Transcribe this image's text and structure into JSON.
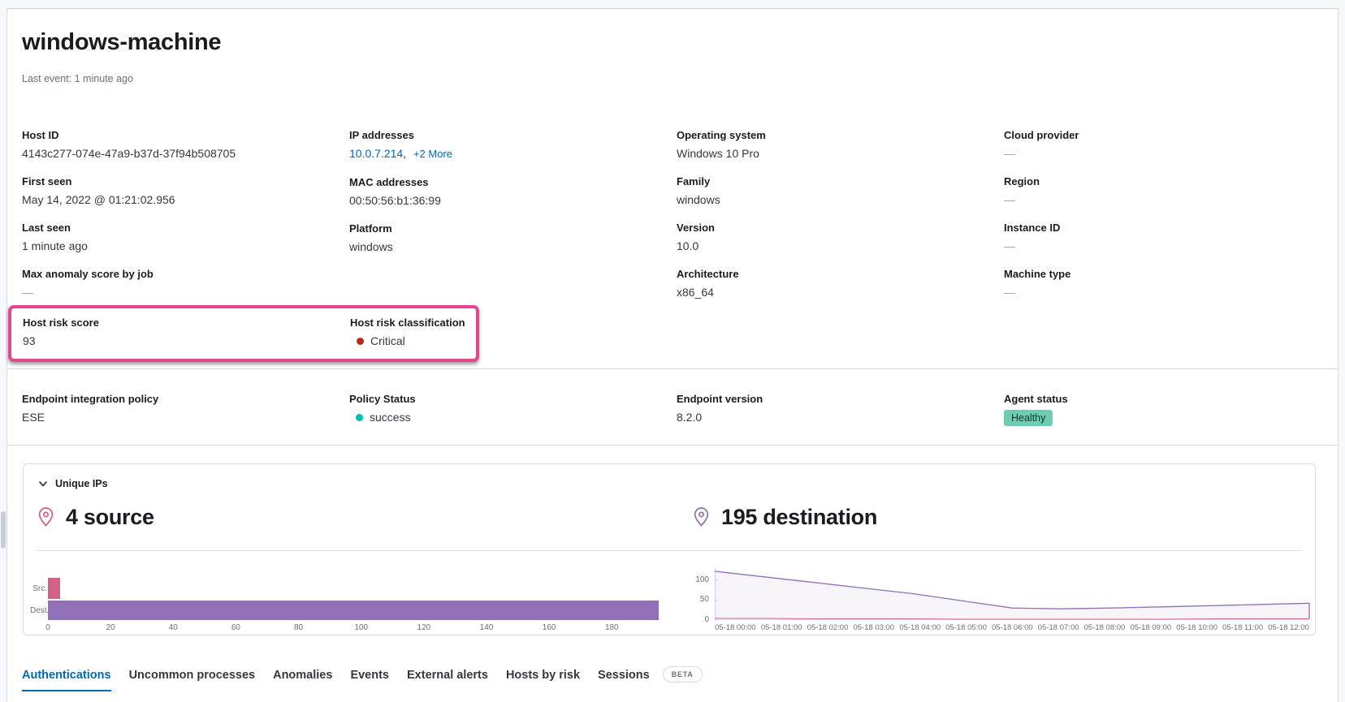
{
  "window": {
    "title": "windows-machine",
    "last_event": "Last event: 1 minute ago"
  },
  "colors": {
    "link": "#006bb4",
    "accent_highlight_box": "#e5478f",
    "critical_dot": "#bd271e",
    "success_dot": "#00bfb3",
    "healthy_badge_bg": "#6dccb1",
    "source_pink": "#d36086",
    "destination_purple": "#9170b8",
    "active_tab": "#006bb4"
  },
  "overview": {
    "columns": [
      {
        "fields": [
          {
            "label": "Host ID",
            "value": "4143c277-074e-47a9-b37d-37f94b508705"
          },
          {
            "label": "First seen",
            "value": "May 14, 2022 @ 01:21:02.956"
          },
          {
            "label": "Last seen",
            "value": "1 minute ago"
          },
          {
            "label": "Max anomaly score by job",
            "value": "—"
          }
        ]
      },
      {
        "fields": [
          {
            "label": "IP addresses",
            "value": "10.0.7.214",
            "separator": ",",
            "more_link": "+2 More"
          },
          {
            "label": "MAC addresses",
            "value": "00:50:56:b1:36:99"
          },
          {
            "label": "Platform",
            "value": "windows"
          }
        ]
      },
      {
        "fields": [
          {
            "label": "Operating system",
            "value": "Windows 10 Pro"
          },
          {
            "label": "Family",
            "value": "windows"
          },
          {
            "label": "Version",
            "value": "10.0"
          },
          {
            "label": "Architecture",
            "value": "x86_64"
          }
        ]
      },
      {
        "fields": [
          {
            "label": "Cloud provider",
            "value": "—"
          },
          {
            "label": "Region",
            "value": "—"
          },
          {
            "label": "Instance ID",
            "value": "—"
          },
          {
            "label": "Machine type",
            "value": "—"
          }
        ]
      }
    ]
  },
  "risk": {
    "score_label": "Host risk score",
    "score": "93",
    "classification_label": "Host risk classification",
    "classification": "Critical"
  },
  "endpoint": {
    "policy_label": "Endpoint integration policy",
    "policy_value": "ESE",
    "status_label": "Policy Status",
    "status_value": "success",
    "version_label": "Endpoint version",
    "version_value": "8.2.0",
    "agent_label": "Agent status",
    "agent_value": "Healthy"
  },
  "unique_ips": {
    "header": "Unique IPs",
    "source_heading": "4 source",
    "destination_heading": "195 destination"
  },
  "chart_data": [
    {
      "id": "unique-ips-bar",
      "type": "bar",
      "orientation": "horizontal",
      "categories": [
        "Src.",
        "Dest."
      ],
      "values": [
        4,
        195
      ],
      "series_colors": [
        "#d36086",
        "#9170b8"
      ],
      "xlim": [
        0,
        196
      ],
      "xticks": [
        0,
        20,
        40,
        60,
        80,
        100,
        120,
        140,
        160,
        180
      ],
      "legend": "none",
      "grid": false
    },
    {
      "id": "unique-ips-over-time",
      "type": "area",
      "x": [
        "05-18 00:00",
        "05-18 01:00",
        "05-18 02:00",
        "05-18 03:00",
        "05-18 04:00",
        "05-18 05:00",
        "05-18 06:00",
        "05-18 07:00",
        "05-18 08:00",
        "05-18 09:00",
        "05-18 10:00",
        "05-18 11:00",
        "05-18 12:00"
      ],
      "series": [
        {
          "name": "destination",
          "color": "#9170b8",
          "values": [
            122,
            108,
            94,
            80,
            66,
            48,
            30,
            28,
            30,
            33,
            36,
            39,
            42
          ],
          "end_drop": 4
        },
        {
          "name": "source",
          "color": "#d36086",
          "values": [
            4,
            4,
            3,
            3,
            3,
            2,
            2,
            2,
            2,
            2,
            3,
            3,
            3
          ]
        }
      ],
      "yticks": [
        0,
        50,
        100
      ],
      "ylim": [
        0,
        130
      ],
      "fill_opacity": 0.08,
      "legend": "none",
      "grid": false
    }
  ],
  "tabs": {
    "items": [
      {
        "label": "Authentications",
        "active": true
      },
      {
        "label": "Uncommon processes",
        "active": false
      },
      {
        "label": "Anomalies",
        "active": false
      },
      {
        "label": "Events",
        "active": false
      },
      {
        "label": "External alerts",
        "active": false
      },
      {
        "label": "Hosts by risk",
        "active": false
      },
      {
        "label": "Sessions",
        "active": false
      }
    ],
    "beta_badge": "BETA"
  }
}
